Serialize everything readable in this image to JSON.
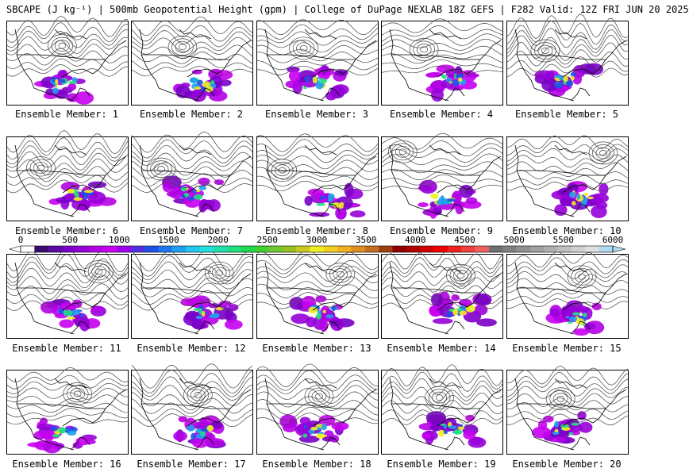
{
  "title": "SBCAPE (J kg⁻¹) | 500mb Geopotential Height (gpm) | College of DuPage NEXLAB 18Z GEFS | F282 Valid: 12Z FRI JUN 20 2025",
  "member_label_prefix": "Ensemble Member:",
  "members": [
    "1",
    "2",
    "3",
    "4",
    "5",
    "6",
    "7",
    "8",
    "9",
    "10",
    "11",
    "12",
    "13",
    "14",
    "15",
    "16",
    "17",
    "18",
    "19",
    "20"
  ],
  "colorbar": {
    "ticks": [
      "0",
      "500",
      "1000",
      "1500",
      "2000",
      "2500",
      "3000",
      "3500",
      "4000",
      "4500",
      "5000",
      "5500",
      "6000"
    ],
    "range": [
      0,
      6000
    ],
    "colors": [
      "#ffffff",
      "#3a0a6e",
      "#5a0aa0",
      "#7a00c8",
      "#9600d8",
      "#b400e6",
      "#c800f0",
      "#a000f0",
      "#5030e0",
      "#2050e8",
      "#1e78f0",
      "#1ea0f0",
      "#20c8f0",
      "#20e0e0",
      "#20e0b0",
      "#20e080",
      "#20d850",
      "#40d030",
      "#70c830",
      "#98c020",
      "#c8c820",
      "#f0f020",
      "#f0d020",
      "#f0b020",
      "#e09020",
      "#c07020",
      "#a04010",
      "#900000",
      "#b00000",
      "#d00000",
      "#f00000",
      "#f02020",
      "#f04040",
      "#f06060",
      "#707070",
      "#808080",
      "#909090",
      "#a0a0a0",
      "#b0b0b0",
      "#c0c0c0",
      "#d0d0d0",
      "#e0e0e0",
      "#b0d8f0"
    ]
  }
}
